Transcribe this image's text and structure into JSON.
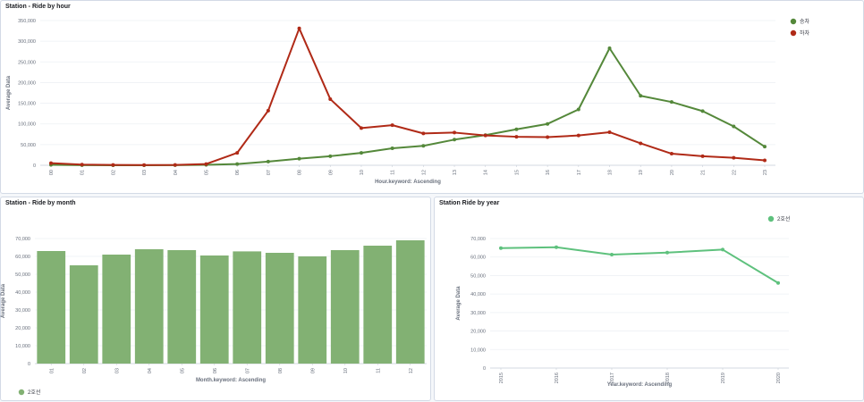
{
  "panels": {
    "hour": {
      "title": "Station - Ride by hour"
    },
    "month": {
      "title": "Station - Ride by month"
    },
    "year": {
      "title": "Station Ride by year"
    }
  },
  "chart_data": [
    {
      "id": "hour",
      "type": "line",
      "title": "Station - Ride by hour",
      "xlabel": "Hour.keyword: Ascending",
      "ylabel": "Average Data",
      "categories": [
        "00",
        "01",
        "02",
        "03",
        "04",
        "05",
        "06",
        "07",
        "08",
        "09",
        "10",
        "11",
        "12",
        "13",
        "14",
        "15",
        "16",
        "17",
        "18",
        "19",
        "20",
        "21",
        "22",
        "23"
      ],
      "ylim": [
        0,
        350000
      ],
      "yticks": [
        0,
        50000,
        100000,
        150000,
        200000,
        250000,
        300000,
        350000
      ],
      "ytick_labels": [
        "0",
        "50,000",
        "100,000",
        "150,000",
        "200,000",
        "250,000",
        "300,000",
        "350,000"
      ],
      "legend_position": "top-right",
      "series": [
        {
          "name": "승차",
          "color": "#54883a",
          "values": [
            1000,
            300,
            100,
            100,
            200,
            1000,
            3000,
            9000,
            16000,
            22000,
            30000,
            41000,
            47000,
            62000,
            73000,
            87000,
            100000,
            135000,
            283000,
            168000,
            153000,
            131000,
            94000,
            45000
          ]
        },
        {
          "name": "하차",
          "color": "#b02a17",
          "values": [
            5000,
            1500,
            800,
            500,
            700,
            3000,
            30000,
            132000,
            331000,
            160000,
            90000,
            97000,
            77000,
            79000,
            72000,
            69000,
            68000,
            72000,
            80000,
            53000,
            28000,
            22000,
            18000,
            12000
          ]
        }
      ]
    },
    {
      "id": "month",
      "type": "bar",
      "title": "Station - Ride by month",
      "xlabel": "Month.keyword: Ascending",
      "ylabel": "Average Data",
      "categories": [
        "01",
        "02",
        "03",
        "04",
        "05",
        "06",
        "07",
        "08",
        "09",
        "10",
        "11",
        "12"
      ],
      "ylim": [
        0,
        70000
      ],
      "yticks": [
        0,
        10000,
        20000,
        30000,
        40000,
        50000,
        60000,
        70000
      ],
      "ytick_labels": [
        "0",
        "10,000",
        "20,000",
        "30,000",
        "40,000",
        "50,000",
        "60,000",
        "70,000"
      ],
      "legend_position": "bottom-left",
      "series": [
        {
          "name": "2호선",
          "color": "#82b173",
          "values": [
            63000,
            55000,
            61000,
            64000,
            63500,
            60500,
            62800,
            62000,
            60000,
            63500,
            66000,
            69000
          ]
        }
      ]
    },
    {
      "id": "year",
      "type": "line",
      "title": "Station Ride by year",
      "xlabel": "Year.keyword: Ascending",
      "ylabel": "Average Data",
      "categories": [
        "2015",
        "2016",
        "2017",
        "2018",
        "2019",
        "2020"
      ],
      "ylim": [
        0,
        70000
      ],
      "yticks": [
        0,
        10000,
        20000,
        30000,
        40000,
        50000,
        60000,
        70000
      ],
      "ytick_labels": [
        "0",
        "10,000",
        "20,000",
        "30,000",
        "40,000",
        "50,000",
        "60,000",
        "70,000"
      ],
      "legend_position": "top-right",
      "series": [
        {
          "name": "2호선",
          "color": "#5ec17d",
          "values": [
            64800,
            65300,
            61300,
            62400,
            64000,
            46000
          ]
        }
      ]
    }
  ]
}
